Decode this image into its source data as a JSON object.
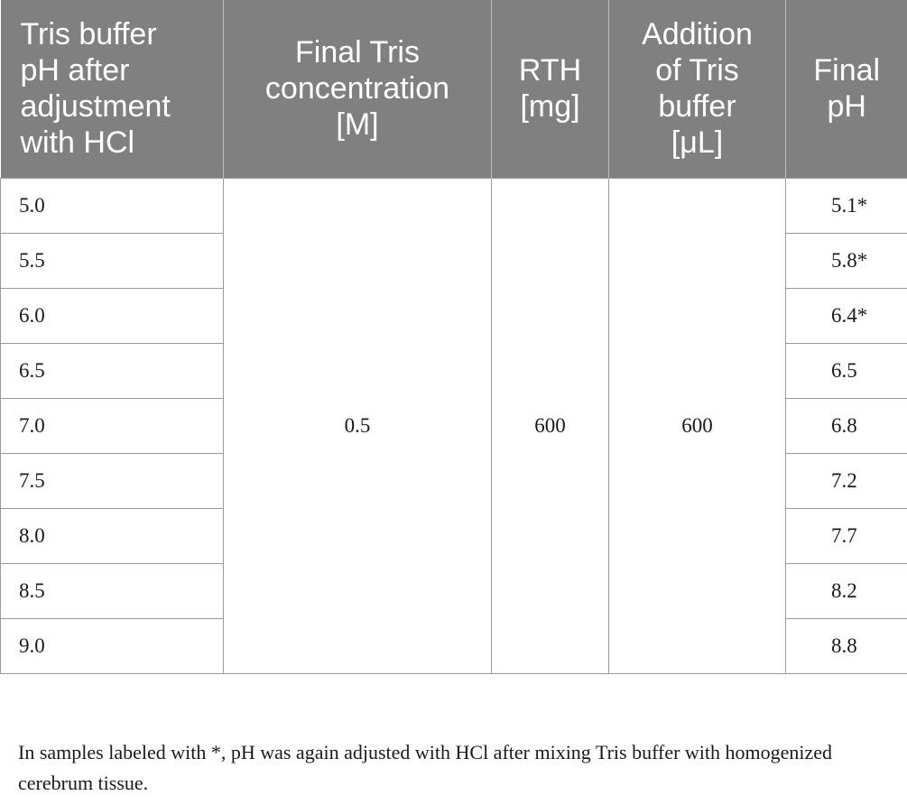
{
  "table": {
    "headers": [
      "Tris buffer pH after adjustment with HCl",
      "Final Tris concentration [M]",
      "RTH [mg]",
      "Addition of Tris buffer [μL]",
      "Final pH"
    ],
    "header_lines": [
      [
        "Tris buffer",
        "pH after",
        "adjustment",
        "with HCl"
      ],
      [
        "Final Tris",
        "concentration",
        "[M]"
      ],
      [
        "RTH",
        "[mg]"
      ],
      [
        "Addition",
        "of Tris",
        "buffer",
        "[μL]"
      ],
      [
        "Final",
        "pH"
      ]
    ],
    "merged_values": {
      "final_tris_concentration": "0.5",
      "rth_mg": "600",
      "tris_buffer_addition": "600"
    },
    "rows": [
      {
        "ph_adjusted": "5.0",
        "final_ph": "5.1*"
      },
      {
        "ph_adjusted": "5.5",
        "final_ph": "5.8*"
      },
      {
        "ph_adjusted": "6.0",
        "final_ph": "6.4*"
      },
      {
        "ph_adjusted": "6.5",
        "final_ph": "6.5"
      },
      {
        "ph_adjusted": "7.0",
        "final_ph": "6.8"
      },
      {
        "ph_adjusted": "7.5",
        "final_ph": "7.2"
      },
      {
        "ph_adjusted": "8.0",
        "final_ph": "7.7"
      },
      {
        "ph_adjusted": "8.5",
        "final_ph": "8.2"
      },
      {
        "ph_adjusted": "9.0",
        "final_ph": "8.8"
      }
    ]
  },
  "footnote": "In samples labeled with *, pH was again adjusted with HCl after mixing Tris buffer with homogenized cerebrum tissue.",
  "colors": {
    "header_background": "#808080",
    "header_text": "#ffffff",
    "border": "#9a9a9a"
  }
}
